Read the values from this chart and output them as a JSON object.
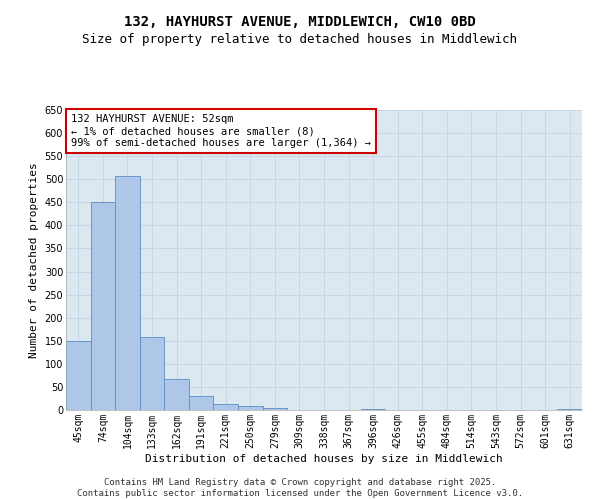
{
  "title_line1": "132, HAYHURST AVENUE, MIDDLEWICH, CW10 0BD",
  "title_line2": "Size of property relative to detached houses in Middlewich",
  "xlabel": "Distribution of detached houses by size in Middlewich",
  "ylabel": "Number of detached properties",
  "categories": [
    "45sqm",
    "74sqm",
    "104sqm",
    "133sqm",
    "162sqm",
    "191sqm",
    "221sqm",
    "250sqm",
    "279sqm",
    "309sqm",
    "338sqm",
    "367sqm",
    "396sqm",
    "426sqm",
    "455sqm",
    "484sqm",
    "514sqm",
    "543sqm",
    "572sqm",
    "601sqm",
    "631sqm"
  ],
  "values": [
    150,
    450,
    508,
    158,
    68,
    30,
    13,
    8,
    5,
    0,
    0,
    0,
    2,
    0,
    0,
    0,
    0,
    0,
    0,
    0,
    3
  ],
  "bar_color": "#aec6e8",
  "bar_edge_color": "#5a8fc2",
  "annotation_box_color": "#cc0000",
  "annotation_text": "132 HAYHURST AVENUE: 52sqm\n← 1% of detached houses are smaller (8)\n99% of semi-detached houses are larger (1,364) →",
  "ylim": [
    0,
    650
  ],
  "yticks": [
    0,
    50,
    100,
    150,
    200,
    250,
    300,
    350,
    400,
    450,
    500,
    550,
    600,
    650
  ],
  "grid_color": "#c8d4e8",
  "background_color": "#dce8f0",
  "footer_line1": "Contains HM Land Registry data © Crown copyright and database right 2025.",
  "footer_line2": "Contains public sector information licensed under the Open Government Licence v3.0.",
  "title_fontsize": 10,
  "subtitle_fontsize": 9,
  "xlabel_fontsize": 8,
  "ylabel_fontsize": 8,
  "annotation_fontsize": 7.5,
  "tick_fontsize": 7,
  "footer_fontsize": 6.5
}
